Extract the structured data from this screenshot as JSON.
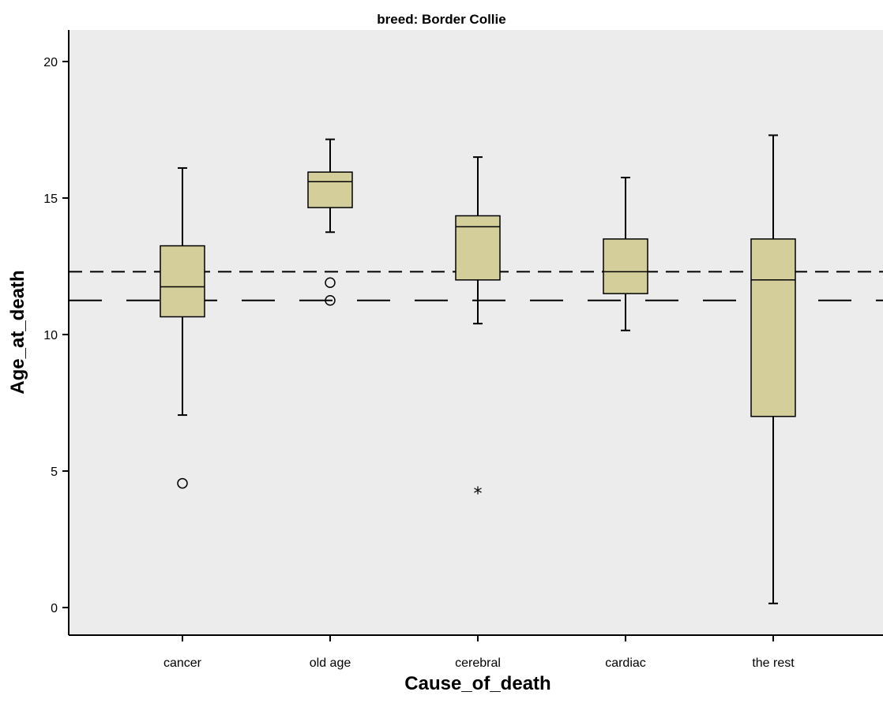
{
  "chart_data": {
    "type": "boxplot",
    "title": "breed: Border Collie",
    "xlabel": "Cause_of_death",
    "ylabel": "Age_at_death",
    "ylim": [
      -1.05,
      21.05
    ],
    "yticks": [
      0,
      5,
      10,
      15,
      20
    ],
    "colors": {
      "plot_bg": "#ececec",
      "box_fill": "#d3ce9a",
      "line": "#000000"
    },
    "categories": [
      "cancer",
      "old age",
      "cerebral",
      "cardiac",
      "the rest"
    ],
    "boxes": [
      {
        "category": "cancer",
        "whisker_low": 7.05,
        "q1": 10.65,
        "median": 11.75,
        "q3": 13.25,
        "whisker_high": 16.1,
        "outliers": [
          {
            "value": 4.55,
            "marker": "circle"
          }
        ]
      },
      {
        "category": "old age",
        "whisker_low": 13.75,
        "q1": 14.65,
        "median": 15.6,
        "q3": 15.95,
        "whisker_high": 17.15,
        "outliers": [
          {
            "value": 11.9,
            "marker": "circle"
          },
          {
            "value": 11.25,
            "marker": "circle"
          }
        ]
      },
      {
        "category": "cerebral",
        "whisker_low": 10.4,
        "q1": 12.0,
        "median": 13.95,
        "q3": 14.35,
        "whisker_high": 16.5,
        "outliers": [
          {
            "value": 4.3,
            "marker": "star"
          }
        ]
      },
      {
        "category": "cardiac",
        "whisker_low": 10.15,
        "q1": 11.5,
        "median": 12.3,
        "q3": 13.5,
        "whisker_high": 15.75,
        "outliers": []
      },
      {
        "category": "the rest",
        "whisker_low": 0.15,
        "q1": 7.0,
        "median": 12.0,
        "q3": 13.5,
        "whisker_high": 17.3,
        "outliers": []
      }
    ],
    "reference_lines": [
      {
        "value": 12.3,
        "style": "short-dash"
      },
      {
        "value": 11.25,
        "style": "long-dash"
      }
    ]
  }
}
